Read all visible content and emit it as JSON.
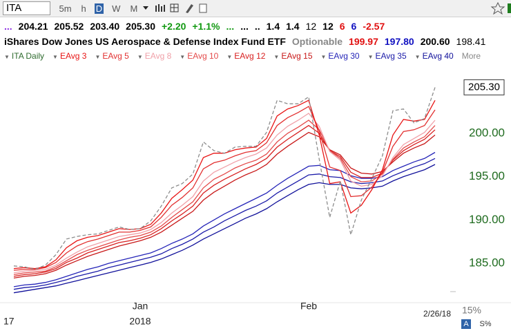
{
  "toolbar": {
    "symbol": "ITA",
    "intervals": [
      "5m",
      "h",
      "D",
      "W",
      "M"
    ],
    "active_interval": 2
  },
  "quote": [
    {
      "text": "...",
      "color": "#8a2be2",
      "bold": true
    },
    {
      "text": "204.21",
      "color": "#000",
      "bold": true
    },
    {
      "text": "205.52",
      "color": "#000",
      "bold": true
    },
    {
      "text": "203.40",
      "color": "#000",
      "bold": true
    },
    {
      "text": "205.30",
      "color": "#000",
      "bold": true
    },
    {
      "text": "+2.20",
      "color": "#119911",
      "bold": true
    },
    {
      "text": "+1.1%",
      "color": "#119911",
      "bold": true
    },
    {
      "text": "...",
      "color": "#119911",
      "bold": true
    },
    {
      "text": "...",
      "color": "#000",
      "bold": true
    },
    {
      "text": "..",
      "color": "#000",
      "bold": true
    },
    {
      "text": "1.4",
      "color": "#000",
      "bold": true
    },
    {
      "text": "1.4",
      "color": "#000",
      "bold": true
    },
    {
      "text": "12",
      "color": "#000",
      "bold": false
    },
    {
      "text": "12",
      "color": "#000",
      "bold": true
    },
    {
      "text": "6",
      "color": "#e01010",
      "bold": true
    },
    {
      "text": "6",
      "color": "#1010c0",
      "bold": true
    },
    {
      "text": "-2.57",
      "color": "#e01010",
      "bold": true
    }
  ],
  "description": [
    {
      "text": "iShares Dow Jones US Aerospace & Defense Index Fund ETF",
      "color": "#000",
      "bold": true
    },
    {
      "text": "Optionable",
      "color": "#888",
      "bold": true
    },
    {
      "text": "199.97",
      "color": "#e01010",
      "bold": true
    },
    {
      "text": "197.80",
      "color": "#1010c0",
      "bold": true
    },
    {
      "text": "200.60",
      "color": "#000",
      "bold": true
    },
    {
      "text": "198.41",
      "color": "#000",
      "bold": false
    }
  ],
  "chart_data": {
    "type": "line",
    "categories": [
      null,
      null,
      null,
      null,
      null,
      null,
      null,
      null,
      null,
      null,
      null,
      null,
      "Jan",
      null,
      null,
      null,
      null,
      null,
      null,
      null,
      null,
      null,
      null,
      null,
      null,
      null,
      null,
      null,
      "Feb",
      null,
      null,
      null,
      null,
      null,
      null,
      null,
      null,
      null,
      null,
      null,
      null
    ],
    "year_labels": [
      "17",
      null,
      null,
      null,
      null,
      null,
      null,
      null,
      null,
      null,
      null,
      null,
      "2018",
      null,
      null,
      null,
      null,
      null,
      null,
      null,
      null,
      null,
      null,
      null,
      null,
      null,
      null,
      null,
      null,
      null,
      null,
      null,
      null,
      null,
      null,
      null,
      null,
      null,
      null,
      null,
      null
    ],
    "last_date": "2/26/18",
    "ylim": [
      181.1,
      207.8
    ],
    "yticks": [
      {
        "value": 185,
        "label": "185.00"
      },
      {
        "value": 190,
        "label": "190.00"
      },
      {
        "value": 195,
        "label": "195.00"
      },
      {
        "value": 200,
        "label": "200.00"
      }
    ],
    "tick_color": "#1f6b1f",
    "last_value_label": "205.30",
    "legend_more": "More",
    "series": [
      {
        "name": "ITA Daily",
        "color": "#8c8c8c",
        "legend_color": "#2e6b2e",
        "dashed": true,
        "values": [
          184.7,
          184.6,
          184.3,
          184.8,
          186.0,
          187.8,
          188.1,
          188.3,
          188.4,
          188.8,
          189.2,
          188.9,
          189.0,
          189.9,
          191.6,
          193.7,
          194.2,
          195.3,
          199.0,
          198.0,
          197.7,
          198.4,
          198.5,
          198.5,
          200.1,
          203.8,
          203.4,
          203.4,
          204.2,
          197.0,
          190.3,
          194.5,
          188.3,
          192.3,
          194.8,
          197.4,
          202.6,
          202.8,
          201.2,
          201.7,
          205.3
        ]
      },
      {
        "name": "EAvg 3",
        "color": "#e81414",
        "values": [
          184.4,
          184.5,
          184.4,
          184.6,
          185.4,
          186.8,
          187.6,
          188.0,
          188.2,
          188.6,
          189.0,
          188.9,
          189.0,
          189.5,
          190.8,
          192.5,
          193.5,
          194.6,
          197.2,
          197.7,
          197.7,
          198.1,
          198.3,
          198.4,
          199.4,
          202.0,
          202.8,
          203.2,
          203.8,
          199.8,
          194.2,
          194.4,
          190.8,
          191.7,
          193.5,
          195.8,
          199.8,
          201.6,
          201.4,
          201.6,
          203.8
        ]
      },
      {
        "name": "EAvg 5",
        "color": "#e23030",
        "values": [
          184.2,
          184.3,
          184.3,
          184.5,
          185.1,
          186.2,
          187.0,
          187.5,
          187.8,
          188.2,
          188.6,
          188.6,
          188.8,
          189.2,
          190.3,
          191.7,
          192.6,
          193.7,
          195.9,
          196.6,
          196.9,
          197.4,
          197.8,
          198.0,
          198.9,
          200.9,
          201.8,
          202.4,
          203.1,
          200.3,
          196.1,
          195.7,
          192.7,
          192.8,
          193.8,
          195.5,
          198.5,
          200.2,
          200.4,
          200.9,
          202.7
        ]
      },
      {
        "name": "EAvg 8",
        "color": "#f0a0a8",
        "values": [
          183.9,
          184.1,
          184.2,
          184.3,
          184.8,
          185.6,
          186.3,
          186.9,
          187.3,
          187.7,
          188.1,
          188.3,
          188.5,
          188.9,
          189.7,
          190.8,
          191.7,
          192.7,
          194.5,
          195.5,
          196.1,
          196.7,
          197.2,
          197.6,
          198.3,
          199.8,
          200.8,
          201.5,
          202.3,
          200.8,
          197.9,
          196.9,
          194.5,
          193.9,
          194.1,
          195.1,
          197.2,
          198.7,
          199.4,
          200.1,
          201.5
        ]
      },
      {
        "name": "EAvg 10",
        "color": "#e44a4a",
        "values": [
          183.7,
          183.9,
          184.0,
          184.1,
          184.6,
          185.3,
          186.0,
          186.5,
          186.9,
          187.3,
          187.7,
          188.0,
          188.2,
          188.6,
          189.3,
          190.3,
          191.2,
          192.1,
          193.7,
          194.7,
          195.3,
          196.0,
          196.5,
          196.9,
          197.6,
          199.0,
          200.0,
          200.7,
          201.5,
          200.4,
          198.0,
          197.1,
          195.0,
          194.4,
          194.5,
          195.3,
          197.0,
          198.3,
          199.0,
          199.6,
          200.9
        ]
      },
      {
        "name": "EAvg 12",
        "color": "#d82020",
        "values": [
          183.5,
          183.7,
          183.8,
          184.0,
          184.4,
          185.1,
          185.6,
          186.2,
          186.6,
          187.0,
          187.4,
          187.6,
          187.9,
          188.3,
          189.0,
          189.9,
          190.7,
          191.6,
          193.1,
          194.0,
          194.7,
          195.3,
          195.9,
          196.4,
          197.1,
          198.4,
          199.3,
          200.1,
          200.9,
          200.0,
          198.0,
          197.3,
          195.5,
          194.9,
          194.9,
          195.4,
          196.9,
          198.0,
          198.7,
          199.3,
          200.4
        ]
      },
      {
        "name": "EAvg 15",
        "color": "#c81818",
        "values": [
          183.3,
          183.5,
          183.6,
          183.8,
          184.2,
          184.8,
          185.3,
          185.8,
          186.2,
          186.6,
          187.0,
          187.3,
          187.6,
          188.0,
          188.6,
          189.4,
          190.2,
          191.0,
          192.3,
          193.2,
          193.9,
          194.6,
          195.2,
          195.7,
          196.4,
          197.6,
          198.5,
          199.3,
          200.1,
          199.6,
          198.1,
          197.5,
          196.0,
          195.4,
          195.3,
          195.6,
          196.7,
          197.7,
          198.3,
          198.8,
          199.8
        ]
      },
      {
        "name": "EAvg 30",
        "color": "#2424b8",
        "values": [
          182.3,
          182.5,
          182.6,
          182.8,
          183.1,
          183.5,
          183.9,
          184.3,
          184.6,
          185.0,
          185.3,
          185.6,
          185.9,
          186.2,
          186.7,
          187.3,
          187.8,
          188.4,
          189.3,
          190.0,
          190.7,
          191.3,
          191.9,
          192.5,
          193.1,
          194.0,
          194.8,
          195.5,
          196.2,
          196.3,
          195.8,
          195.7,
          195.1,
          194.8,
          194.8,
          195.0,
          195.7,
          196.2,
          196.7,
          197.1,
          197.8
        ]
      },
      {
        "name": "EAvg 35",
        "color": "#1a1aa8",
        "values": [
          182.0,
          182.2,
          182.3,
          182.5,
          182.8,
          183.1,
          183.5,
          183.8,
          184.1,
          184.5,
          184.8,
          185.1,
          185.4,
          185.7,
          186.1,
          186.7,
          187.2,
          187.8,
          188.6,
          189.2,
          189.9,
          190.5,
          191.1,
          191.6,
          192.2,
          193.1,
          193.8,
          194.5,
          195.2,
          195.3,
          195.0,
          194.9,
          194.4,
          194.2,
          194.3,
          194.5,
          195.1,
          195.6,
          196.1,
          196.5,
          197.1
        ]
      },
      {
        "name": "EAvg 40",
        "color": "#10109a",
        "values": [
          181.6,
          181.8,
          182.0,
          182.2,
          182.4,
          182.7,
          183.0,
          183.3,
          183.6,
          183.9,
          184.2,
          184.5,
          184.8,
          185.1,
          185.5,
          186.0,
          186.5,
          187.1,
          187.8,
          188.4,
          189.0,
          189.6,
          190.2,
          190.7,
          191.3,
          192.1,
          192.8,
          193.5,
          194.1,
          194.3,
          194.1,
          194.1,
          193.7,
          193.6,
          193.7,
          193.9,
          194.5,
          195.0,
          195.4,
          195.8,
          196.4
        ]
      }
    ]
  },
  "footer": {
    "zoom": "15%",
    "buttons": [
      "A",
      "S%"
    ]
  }
}
